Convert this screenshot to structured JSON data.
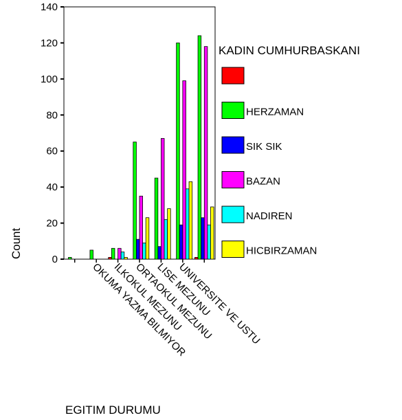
{
  "chart_data": {
    "type": "bar",
    "xlabel": "EGITIM DURUMU",
    "ylabel": "Count",
    "ylim": [
      0,
      140
    ],
    "yticks": [
      0,
      20,
      40,
      60,
      80,
      100,
      120,
      140
    ],
    "grid": false,
    "legend": {
      "title": "KADIN CUMHURBASKANI",
      "position": "right"
    },
    "categories": [
      "OKUMA YAZMA BILMIYOR",
      "ILKOKUL MEZUNU",
      "ORTAOKUL MEZUNU",
      "LISE MEZUNU",
      "UNIVERSITE VE USTU"
    ],
    "series": [
      {
        "name": "",
        "color": "#ff0000",
        "values": [
          0,
          1,
          0,
          0,
          0
        ]
      },
      {
        "name": "HERZAMAN",
        "color": "#00ff00",
        "values": [
          5,
          6,
          65,
          45,
          120
        ]
      },
      {
        "name": "SIK SIK",
        "color": "#0000ff",
        "values": [
          0,
          0,
          11,
          7,
          19
        ]
      },
      {
        "name": "BAZAN",
        "color": "#ff00ff",
        "values": [
          0,
          6,
          35,
          67,
          99
        ]
      },
      {
        "name": "NADIREN",
        "color": "#00ffff",
        "values": [
          0,
          4,
          9,
          22,
          39
        ]
      },
      {
        "name": "HICBIRZAMAN",
        "color": "#ffff00",
        "values": [
          0,
          1,
          23,
          28,
          43
        ]
      }
    ],
    "extra_group_values": [
      1,
      124,
      23,
      118,
      19,
      29
    ]
  }
}
